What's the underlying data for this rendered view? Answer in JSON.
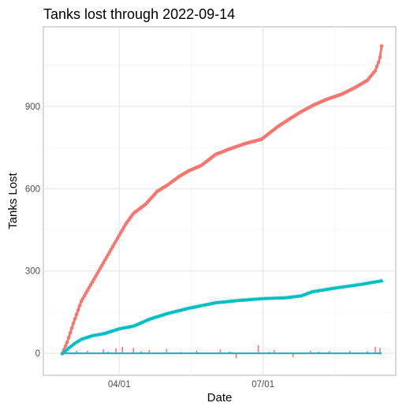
{
  "chart_data": {
    "type": "line",
    "title": "Tanks lost through 2022-09-14",
    "xlabel": "Date",
    "ylabel": "Tanks Lost",
    "x_axis_type": "date",
    "xlim": [
      "2022-02-12",
      "2022-09-23"
    ],
    "ylim": [
      -80,
      1190
    ],
    "x_ticks": [
      {
        "date": "2022-04-01",
        "label": "04/01"
      },
      {
        "date": "2022-07-01",
        "label": "07/01"
      }
    ],
    "y_ticks": [
      0,
      300,
      600,
      900
    ],
    "grid": true,
    "legend": "none",
    "series": [
      {
        "color": "#F8766D",
        "marker": "circle",
        "cumulative_points": [
          {
            "x": "2022-02-24",
            "y": 0
          },
          {
            "x": "2022-02-27",
            "y": 40
          },
          {
            "x": "2022-03-03",
            "y": 110
          },
          {
            "x": "2022-03-08",
            "y": 190
          },
          {
            "x": "2022-03-13",
            "y": 240
          },
          {
            "x": "2022-03-20",
            "y": 310
          },
          {
            "x": "2022-03-27",
            "y": 380
          },
          {
            "x": "2022-04-01",
            "y": 430
          },
          {
            "x": "2022-04-05",
            "y": 470
          },
          {
            "x": "2022-04-10",
            "y": 510
          },
          {
            "x": "2022-04-18",
            "y": 545
          },
          {
            "x": "2022-04-25",
            "y": 590
          },
          {
            "x": "2022-05-02",
            "y": 615
          },
          {
            "x": "2022-05-09",
            "y": 645
          },
          {
            "x": "2022-05-15",
            "y": 665
          },
          {
            "x": "2022-05-23",
            "y": 685
          },
          {
            "x": "2022-06-01",
            "y": 725
          },
          {
            "x": "2022-06-10",
            "y": 745
          },
          {
            "x": "2022-06-20",
            "y": 765
          },
          {
            "x": "2022-06-30",
            "y": 780
          },
          {
            "x": "2022-07-10",
            "y": 825
          },
          {
            "x": "2022-07-18",
            "y": 855
          },
          {
            "x": "2022-07-25",
            "y": 880
          },
          {
            "x": "2022-08-02",
            "y": 905
          },
          {
            "x": "2022-08-10",
            "y": 925
          },
          {
            "x": "2022-08-20",
            "y": 945
          },
          {
            "x": "2022-08-28",
            "y": 968
          },
          {
            "x": "2022-09-05",
            "y": 995
          },
          {
            "x": "2022-09-10",
            "y": 1030
          },
          {
            "x": "2022-09-12",
            "y": 1060
          },
          {
            "x": "2022-09-13",
            "y": 1080
          },
          {
            "x": "2022-09-14",
            "y": 1120
          }
        ],
        "daily_spikes": [
          {
            "x": "2022-03-12",
            "y": 10
          },
          {
            "x": "2022-03-22",
            "y": 14
          },
          {
            "x": "2022-03-30",
            "y": 18
          },
          {
            "x": "2022-04-03",
            "y": 24
          },
          {
            "x": "2022-04-10",
            "y": 20
          },
          {
            "x": "2022-04-20",
            "y": 12
          },
          {
            "x": "2022-05-01",
            "y": 16
          },
          {
            "x": "2022-05-20",
            "y": 10
          },
          {
            "x": "2022-06-04",
            "y": 14
          },
          {
            "x": "2022-06-14",
            "y": -18
          },
          {
            "x": "2022-06-28",
            "y": 30
          },
          {
            "x": "2022-07-08",
            "y": 12
          },
          {
            "x": "2022-07-20",
            "y": -14
          },
          {
            "x": "2022-07-31",
            "y": 10
          },
          {
            "x": "2022-08-12",
            "y": 8
          },
          {
            "x": "2022-08-25",
            "y": 10
          },
          {
            "x": "2022-09-10",
            "y": 24
          },
          {
            "x": "2022-09-13",
            "y": 20
          }
        ]
      },
      {
        "color": "#00BFC4",
        "marker": "triangle",
        "cumulative_points": [
          {
            "x": "2022-02-24",
            "y": 0
          },
          {
            "x": "2022-02-28",
            "y": 20
          },
          {
            "x": "2022-03-04",
            "y": 38
          },
          {
            "x": "2022-03-08",
            "y": 52
          },
          {
            "x": "2022-03-15",
            "y": 65
          },
          {
            "x": "2022-03-22",
            "y": 72
          },
          {
            "x": "2022-04-01",
            "y": 90
          },
          {
            "x": "2022-04-10",
            "y": 100
          },
          {
            "x": "2022-04-20",
            "y": 125
          },
          {
            "x": "2022-05-01",
            "y": 145
          },
          {
            "x": "2022-05-15",
            "y": 165
          },
          {
            "x": "2022-06-01",
            "y": 185
          },
          {
            "x": "2022-06-15",
            "y": 193
          },
          {
            "x": "2022-07-01",
            "y": 200
          },
          {
            "x": "2022-07-15",
            "y": 203
          },
          {
            "x": "2022-07-25",
            "y": 210
          },
          {
            "x": "2022-08-01",
            "y": 225
          },
          {
            "x": "2022-08-15",
            "y": 238
          },
          {
            "x": "2022-09-01",
            "y": 252
          },
          {
            "x": "2022-09-14",
            "y": 265
          }
        ],
        "daily_spikes": [
          {
            "x": "2022-03-05",
            "y": 8
          },
          {
            "x": "2022-03-25",
            "y": 6
          },
          {
            "x": "2022-04-15",
            "y": 7
          },
          {
            "x": "2022-05-10",
            "y": 5
          },
          {
            "x": "2022-06-10",
            "y": 6
          },
          {
            "x": "2022-07-05",
            "y": 5
          },
          {
            "x": "2022-08-05",
            "y": 6
          },
          {
            "x": "2022-09-05",
            "y": 7
          }
        ]
      }
    ]
  }
}
